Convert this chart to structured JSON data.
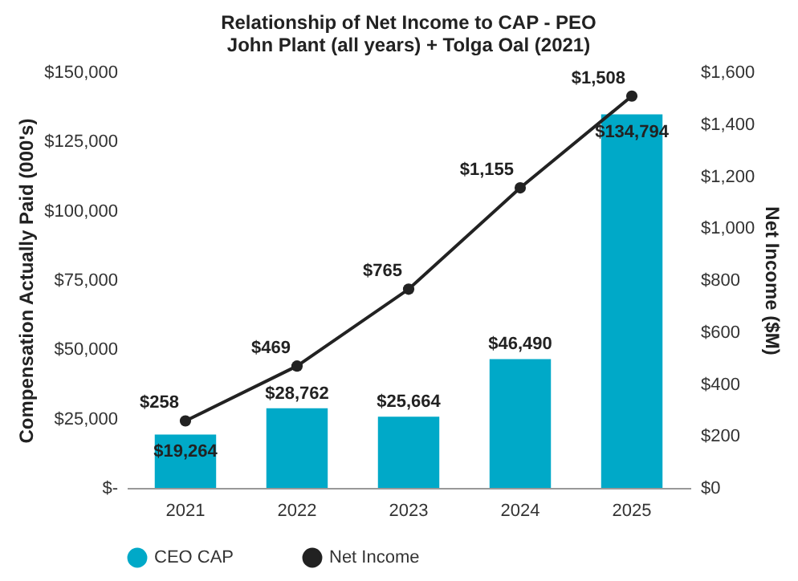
{
  "chart_data": {
    "type": "bar",
    "title": "Relationship of Net Income to CAP - PEO",
    "subtitle": "John Plant (all years) + Tolga Oal (2021)",
    "ylabel": "Compensation Actually Paid (000's)",
    "y2label": "Net Income ($M)",
    "categories": [
      "2021",
      "2022",
      "2023",
      "2024",
      "2025"
    ],
    "series": [
      {
        "name": "CEO CAP",
        "color": "#00a9c8",
        "values": [
          19264,
          28762,
          25664,
          46490,
          134794
        ],
        "value_labels": [
          "$19,264",
          "$28,762",
          "$25,664",
          "$46,490",
          "$134,794"
        ]
      },
      {
        "name": "Net Income",
        "type": "line",
        "axis": "y2",
        "color": "#222222",
        "marker": "circle",
        "values": [
          258,
          469,
          765,
          1155,
          1508
        ],
        "value_labels": [
          "$258",
          "$469",
          "$765",
          "$1,155",
          "$1,508"
        ]
      }
    ],
    "ylim": [
      0,
      150000
    ],
    "yticks": [
      {
        "value": 0,
        "label": "$-"
      },
      {
        "value": 25000,
        "label": "$25,000"
      },
      {
        "value": 50000,
        "label": "$50,000"
      },
      {
        "value": 75000,
        "label": "$75,000"
      },
      {
        "value": 100000,
        "label": "$100,000"
      },
      {
        "value": 125000,
        "label": "$125,000"
      },
      {
        "value": 150000,
        "label": "$150,000"
      }
    ],
    "y2lim": [
      0,
      1600
    ],
    "y2ticks": [
      {
        "value": 0,
        "label": "$0"
      },
      {
        "value": 200,
        "label": "$200"
      },
      {
        "value": 400,
        "label": "$400"
      },
      {
        "value": 600,
        "label": "$600"
      },
      {
        "value": 800,
        "label": "$800"
      },
      {
        "value": 1000,
        "label": "$1,000"
      },
      {
        "value": 1200,
        "label": "$1,200"
      },
      {
        "value": 1400,
        "label": "$1,400"
      },
      {
        "value": 1600,
        "label": "$1,600"
      }
    ],
    "grid": false,
    "legend": "bottom"
  }
}
